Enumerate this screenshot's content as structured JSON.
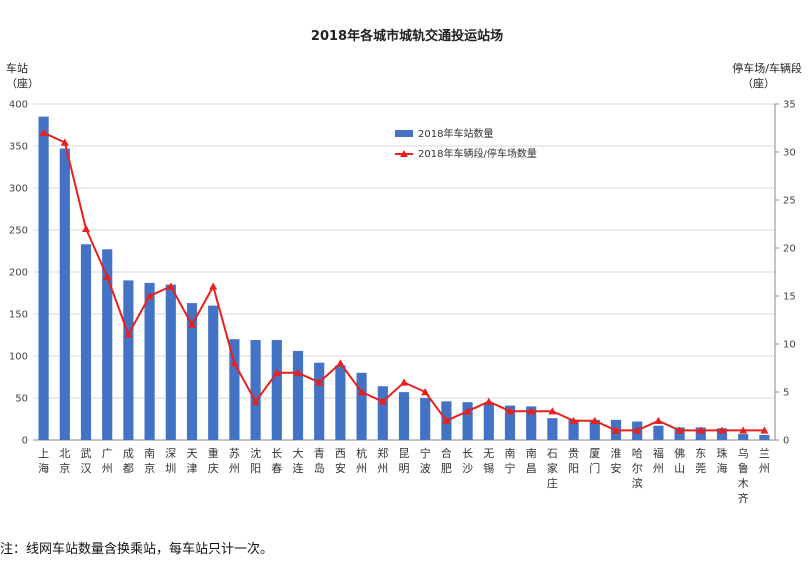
{
  "chart_data": {
    "type": "bar",
    "title": "2018年各城市城轨交通投运站场",
    "ylabel_left": [
      "车站",
      "（座）"
    ],
    "ylabel_right": [
      "停车场/车辆段",
      "（座）"
    ],
    "ylim_left": [
      0,
      400
    ],
    "yticks_left": [
      0,
      50,
      100,
      150,
      200,
      250,
      300,
      350,
      400
    ],
    "ylim_right": [
      0,
      35
    ],
    "yticks_right": [
      0,
      5,
      10,
      15,
      20,
      25,
      30,
      35
    ],
    "legend_placement": "top-center",
    "categories": [
      [
        "上",
        "海"
      ],
      [
        "北",
        "京"
      ],
      [
        "武",
        "汉"
      ],
      [
        "广",
        "州"
      ],
      [
        "成",
        "都"
      ],
      [
        "南",
        "京"
      ],
      [
        "深",
        "圳"
      ],
      [
        "天",
        "津"
      ],
      [
        "重",
        "庆"
      ],
      [
        "苏",
        "州"
      ],
      [
        "沈",
        "阳"
      ],
      [
        "长",
        "春"
      ],
      [
        "大",
        "连"
      ],
      [
        "青",
        "岛"
      ],
      [
        "西",
        "安"
      ],
      [
        "杭",
        "州"
      ],
      [
        "郑",
        "州"
      ],
      [
        "昆",
        "明"
      ],
      [
        "宁",
        "波"
      ],
      [
        "合",
        "肥"
      ],
      [
        "长",
        "沙"
      ],
      [
        "无",
        "锡"
      ],
      [
        "南",
        "宁"
      ],
      [
        "南",
        "昌"
      ],
      [
        "石",
        "家",
        "庄"
      ],
      [
        "贵",
        "阳"
      ],
      [
        "厦",
        "门"
      ],
      [
        "淮",
        "安"
      ],
      [
        "哈",
        "尔",
        "滨"
      ],
      [
        "福",
        "州"
      ],
      [
        "佛",
        "山"
      ],
      [
        "东",
        "莞"
      ],
      [
        "珠",
        "海"
      ],
      [
        "乌",
        "鲁",
        "木",
        "齐"
      ],
      [
        "兰",
        "州"
      ]
    ],
    "series": [
      {
        "name": "2018年车站数量",
        "type": "bar",
        "axis": "left",
        "color": "#4472C4",
        "values": [
          385,
          347,
          233,
          227,
          190,
          187,
          185,
          163,
          160,
          120,
          119,
          119,
          106,
          92,
          89,
          80,
          64,
          57,
          50,
          46,
          45,
          44,
          41,
          40,
          26,
          24,
          24,
          24,
          22,
          17,
          15,
          15,
          14,
          7,
          6
        ]
      },
      {
        "name": "2018年车辆段/停车场数量",
        "type": "line",
        "axis": "right",
        "color": "#E8201E",
        "values": [
          32,
          31,
          22,
          17,
          11,
          15,
          16,
          12,
          16,
          8,
          4,
          7,
          7,
          6,
          8,
          5,
          4,
          6,
          5,
          2,
          3,
          4,
          3,
          3,
          3,
          2,
          2,
          1,
          1,
          2,
          1,
          1,
          1,
          1,
          1
        ]
      }
    ]
  },
  "note": "注：线网车站数量含换乘站，每车站只计一次。"
}
